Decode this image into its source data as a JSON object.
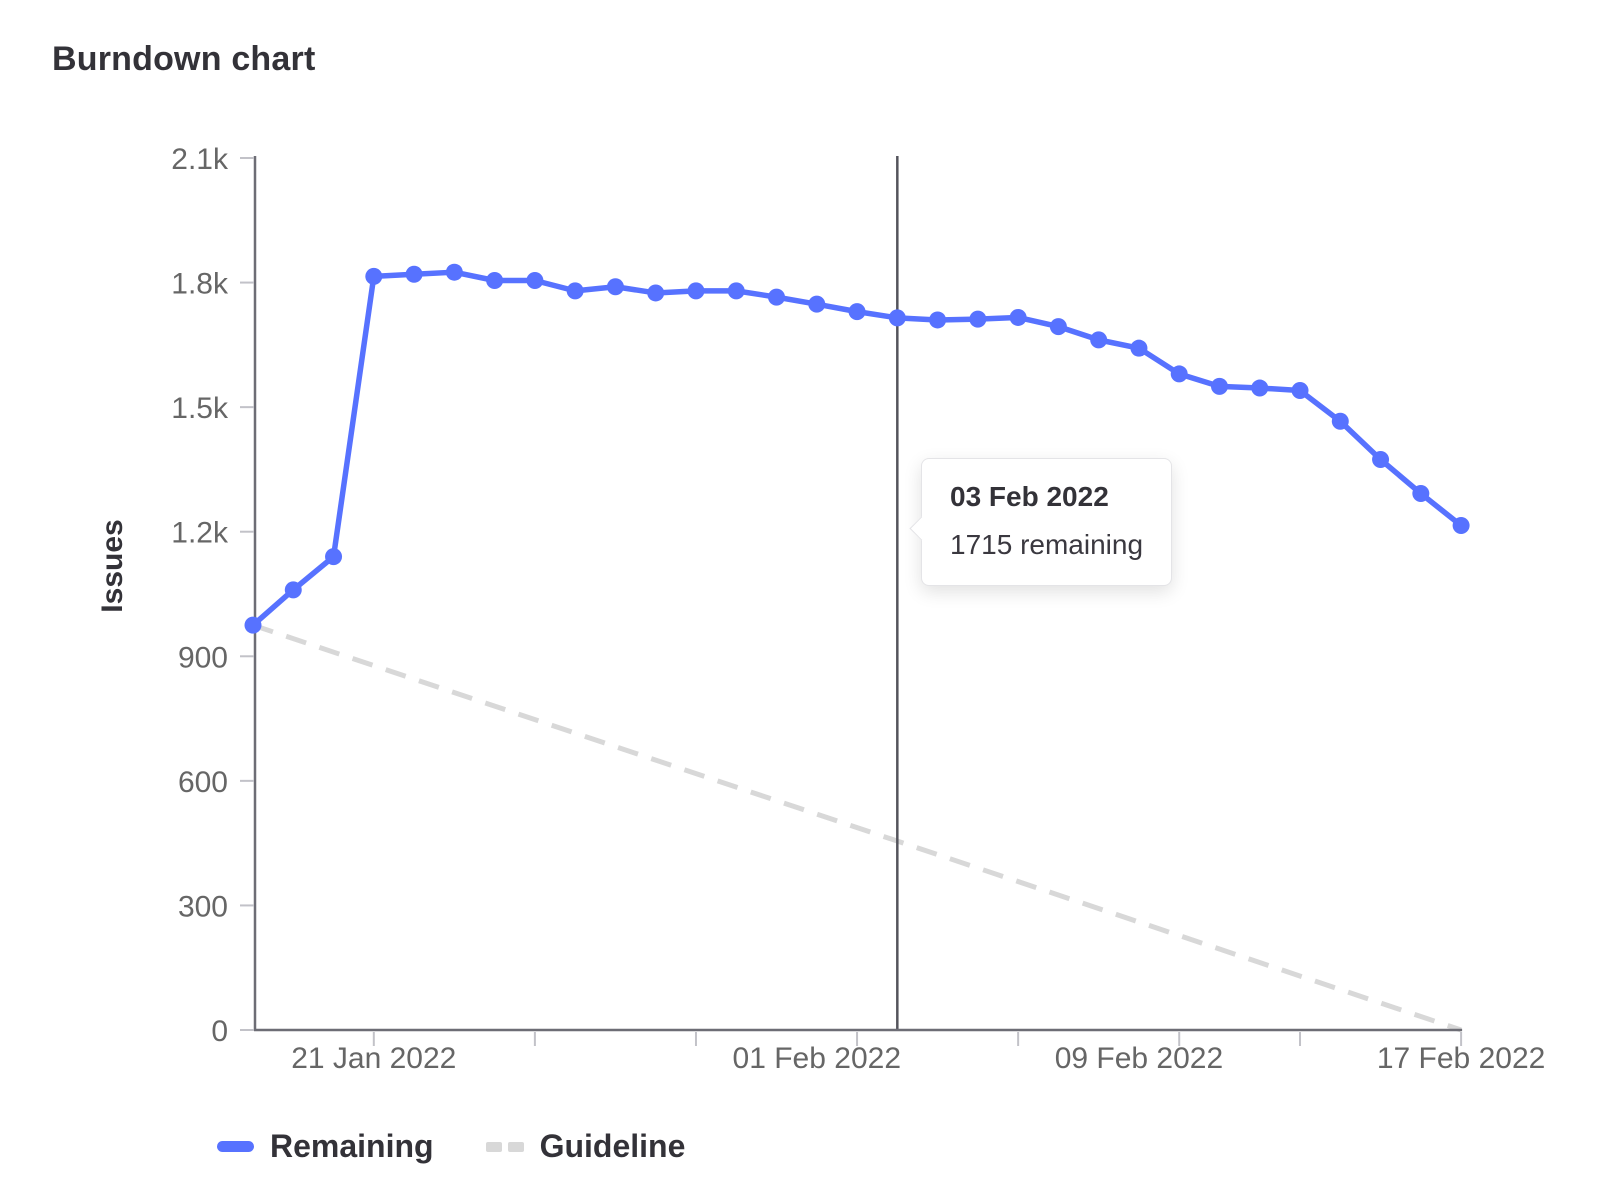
{
  "chart": {
    "title": "Burndown chart",
    "y_axis_label": "Issues"
  },
  "tooltip": {
    "date": "03 Feb 2022",
    "value_text": "1715 remaining"
  },
  "legend": {
    "remaining_label": "Remaining",
    "guideline_label": "Guideline"
  },
  "colors": {
    "remaining": "#5772ff",
    "guideline": "#d8d8d8",
    "axis": "#6d6d75",
    "tick": "#c2c2c8",
    "tick_label": "#666666",
    "annotation_line": "#54545c",
    "text_primary": "#333238"
  },
  "chart_data": {
    "type": "line",
    "title": "Burndown chart",
    "xlabel": "",
    "ylabel": "Issues",
    "ylim": [
      0,
      2100
    ],
    "grid": false,
    "legend_position": "bottom-left",
    "y_ticks": [
      {
        "value": 0,
        "label": "0"
      },
      {
        "value": 300,
        "label": "300"
      },
      {
        "value": 600,
        "label": "600"
      },
      {
        "value": 900,
        "label": "900"
      },
      {
        "value": 1200,
        "label": "1.2k"
      },
      {
        "value": 1500,
        "label": "1.5k"
      },
      {
        "value": 1800,
        "label": "1.8k"
      },
      {
        "value": 2100,
        "label": "2.1k"
      }
    ],
    "x_range": [
      "18 Jan 2022",
      "17 Feb 2022"
    ],
    "x_tick_labels": [
      {
        "day_index": 3,
        "label": "21 Jan 2022"
      },
      {
        "day_index": 14,
        "label": "01 Feb 2022"
      },
      {
        "day_index": 22,
        "label": "09 Feb 2022"
      },
      {
        "day_index": 30,
        "label": "17 Feb 2022"
      }
    ],
    "x_minor_tick_days": [
      3,
      7,
      11,
      15,
      19,
      23,
      26,
      30
    ],
    "series": [
      {
        "name": "Remaining",
        "style": "solid",
        "color": "#5772ff",
        "dates": [
          "18 Jan",
          "19 Jan",
          "20 Jan",
          "21 Jan",
          "22 Jan",
          "23 Jan",
          "24 Jan",
          "25 Jan",
          "26 Jan",
          "27 Jan",
          "28 Jan",
          "29 Jan",
          "30 Jan",
          "31 Jan",
          "01 Feb",
          "02 Feb",
          "03 Feb",
          "04 Feb",
          "05 Feb",
          "06 Feb",
          "07 Feb",
          "08 Feb",
          "09 Feb",
          "10 Feb",
          "11 Feb",
          "12 Feb",
          "13 Feb",
          "14 Feb",
          "15 Feb",
          "16 Feb",
          "17 Feb"
        ],
        "values": [
          975,
          1060,
          1140,
          1815,
          1820,
          1825,
          1805,
          1805,
          1780,
          1790,
          1775,
          1780,
          1780,
          1765,
          1748,
          1730,
          1715,
          1710,
          1712,
          1716,
          1694,
          1662,
          1642,
          1580,
          1550,
          1546,
          1540,
          1466,
          1374,
          1292,
          1215
        ]
      },
      {
        "name": "Guideline",
        "style": "dashed",
        "color": "#d8d8d8",
        "points": [
          {
            "day_index": 0,
            "value": 975
          },
          {
            "day_index": 30,
            "value": 0
          }
        ]
      }
    ],
    "annotation": {
      "day_index": 16,
      "label": "03 Feb 2022",
      "value_text": "1715 remaining"
    }
  }
}
